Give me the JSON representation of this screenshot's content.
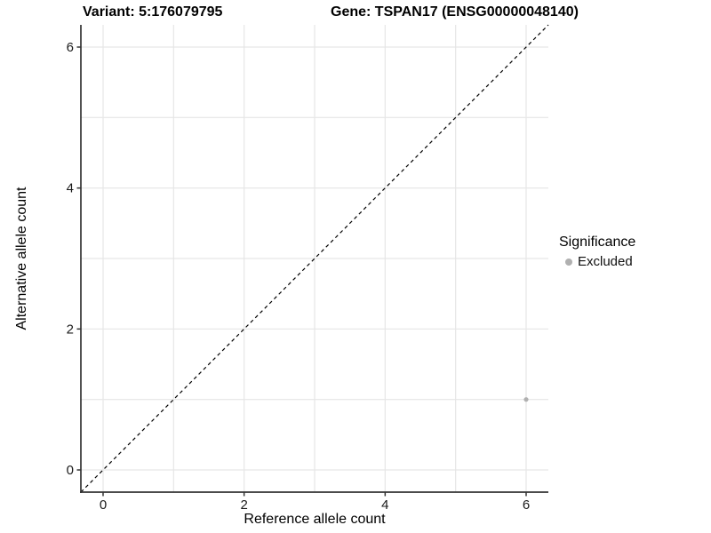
{
  "header": {
    "title_left": "Variant: 5:176079795",
    "title_right": "Gene: TSPAN17 (ENSG00000048140)"
  },
  "legend": {
    "title": "Significance",
    "items": [
      {
        "label": "Excluded",
        "color": "#b0b0b0"
      }
    ]
  },
  "colors": {
    "grid": "#e6e6e6",
    "axis": "#333333",
    "tick_label": "#1a1a1a",
    "reference_line": "#000000",
    "point": "#b0b0b0",
    "background": "#ffffff"
  },
  "chart_data": {
    "type": "scatter",
    "title": "Variant: 5:176079795   Gene: TSPAN17 (ENSG00000048140)",
    "xlabel": "Reference allele count",
    "ylabel": "Alternative allele count",
    "xlim": [
      -0.315,
      6.315
    ],
    "ylim": [
      -0.315,
      6.315
    ],
    "xticks": [
      0,
      2,
      4,
      6
    ],
    "yticks": [
      0,
      2,
      4,
      6
    ],
    "grid": true,
    "grid_min": 0,
    "grid_max": 6,
    "grid_every": 1,
    "legend_position": "right",
    "series": [
      {
        "name": "Excluded",
        "color": "#b0b0b0",
        "points": [
          [
            6,
            1
          ]
        ]
      }
    ],
    "reference_line": {
      "slope": 1,
      "intercept": 0,
      "style": "dashed",
      "color": "#000000"
    }
  }
}
